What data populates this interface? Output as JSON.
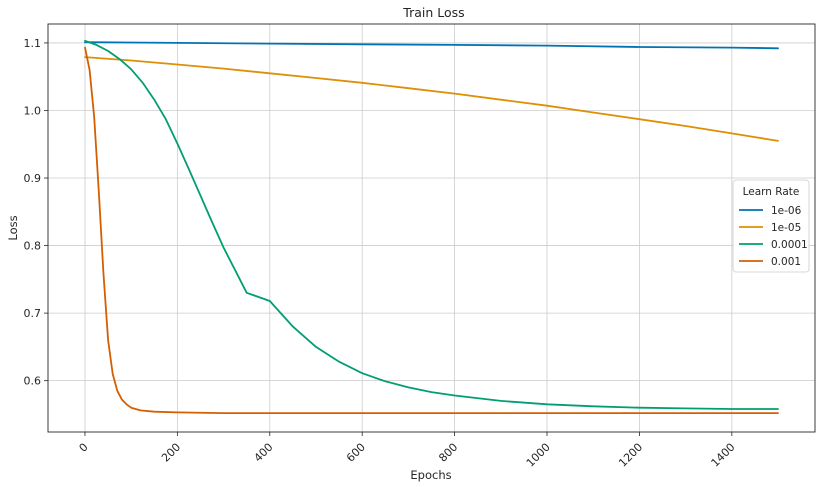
{
  "chart_data": {
    "type": "line",
    "title": "Train Loss",
    "xlabel": "Epochs",
    "ylabel": "Loss",
    "xlim": [
      -80,
      1580
    ],
    "ylim": [
      0.524,
      1.128
    ],
    "xticks": [
      0,
      200,
      400,
      600,
      800,
      1000,
      1200,
      1400
    ],
    "xtick_labels": [
      "0",
      "200",
      "400",
      "600",
      "800",
      "1000",
      "1200",
      "1400"
    ],
    "yticks": [
      0.6,
      0.7,
      0.8,
      0.9,
      1.0,
      1.1
    ],
    "ytick_labels": [
      "0.6",
      "0.7",
      "0.8",
      "0.9",
      "1.0",
      "1.1"
    ],
    "grid": true,
    "legend": {
      "title": "Learn Rate",
      "placement": "center-right"
    },
    "series": [
      {
        "name": "1e-06",
        "color": "#0173b2",
        "x": [
          0,
          200,
          400,
          600,
          800,
          1000,
          1200,
          1400,
          1500
        ],
        "y": [
          1.101,
          1.1,
          1.099,
          1.098,
          1.097,
          1.096,
          1.094,
          1.093,
          1.092
        ]
      },
      {
        "name": "1e-05",
        "color": "#de8f05",
        "x": [
          0,
          100,
          200,
          300,
          400,
          500,
          600,
          700,
          800,
          900,
          1000,
          1100,
          1200,
          1300,
          1400,
          1500
        ],
        "y": [
          1.079,
          1.074,
          1.068,
          1.062,
          1.055,
          1.048,
          1.041,
          1.033,
          1.025,
          1.016,
          1.007,
          0.997,
          0.987,
          0.977,
          0.966,
          0.955
        ]
      },
      {
        "name": "0.0001",
        "color": "#029e73",
        "x": [
          0,
          25,
          50,
          75,
          100,
          125,
          150,
          175,
          200,
          225,
          250,
          275,
          300,
          350,
          400,
          450,
          500,
          550,
          600,
          650,
          700,
          750,
          800,
          900,
          1000,
          1100,
          1200,
          1300,
          1400,
          1500
        ],
        "y": [
          1.103,
          1.097,
          1.088,
          1.076,
          1.061,
          1.041,
          1.016,
          0.987,
          0.951,
          0.913,
          0.874,
          0.835,
          0.797,
          0.73,
          0.718,
          0.68,
          0.65,
          0.628,
          0.611,
          0.599,
          0.59,
          0.583,
          0.578,
          0.57,
          0.565,
          0.562,
          0.56,
          0.559,
          0.558,
          0.558
        ]
      },
      {
        "name": "0.001",
        "color": "#d55e00",
        "x": [
          0,
          10,
          20,
          30,
          40,
          50,
          60,
          70,
          80,
          90,
          100,
          120,
          150,
          200,
          300,
          400,
          600,
          800,
          1000,
          1200,
          1400,
          1500
        ],
        "y": [
          1.093,
          1.06,
          0.99,
          0.88,
          0.76,
          0.66,
          0.61,
          0.585,
          0.572,
          0.565,
          0.56,
          0.556,
          0.554,
          0.553,
          0.552,
          0.552,
          0.552,
          0.552,
          0.552,
          0.552,
          0.552,
          0.552
        ]
      }
    ]
  }
}
